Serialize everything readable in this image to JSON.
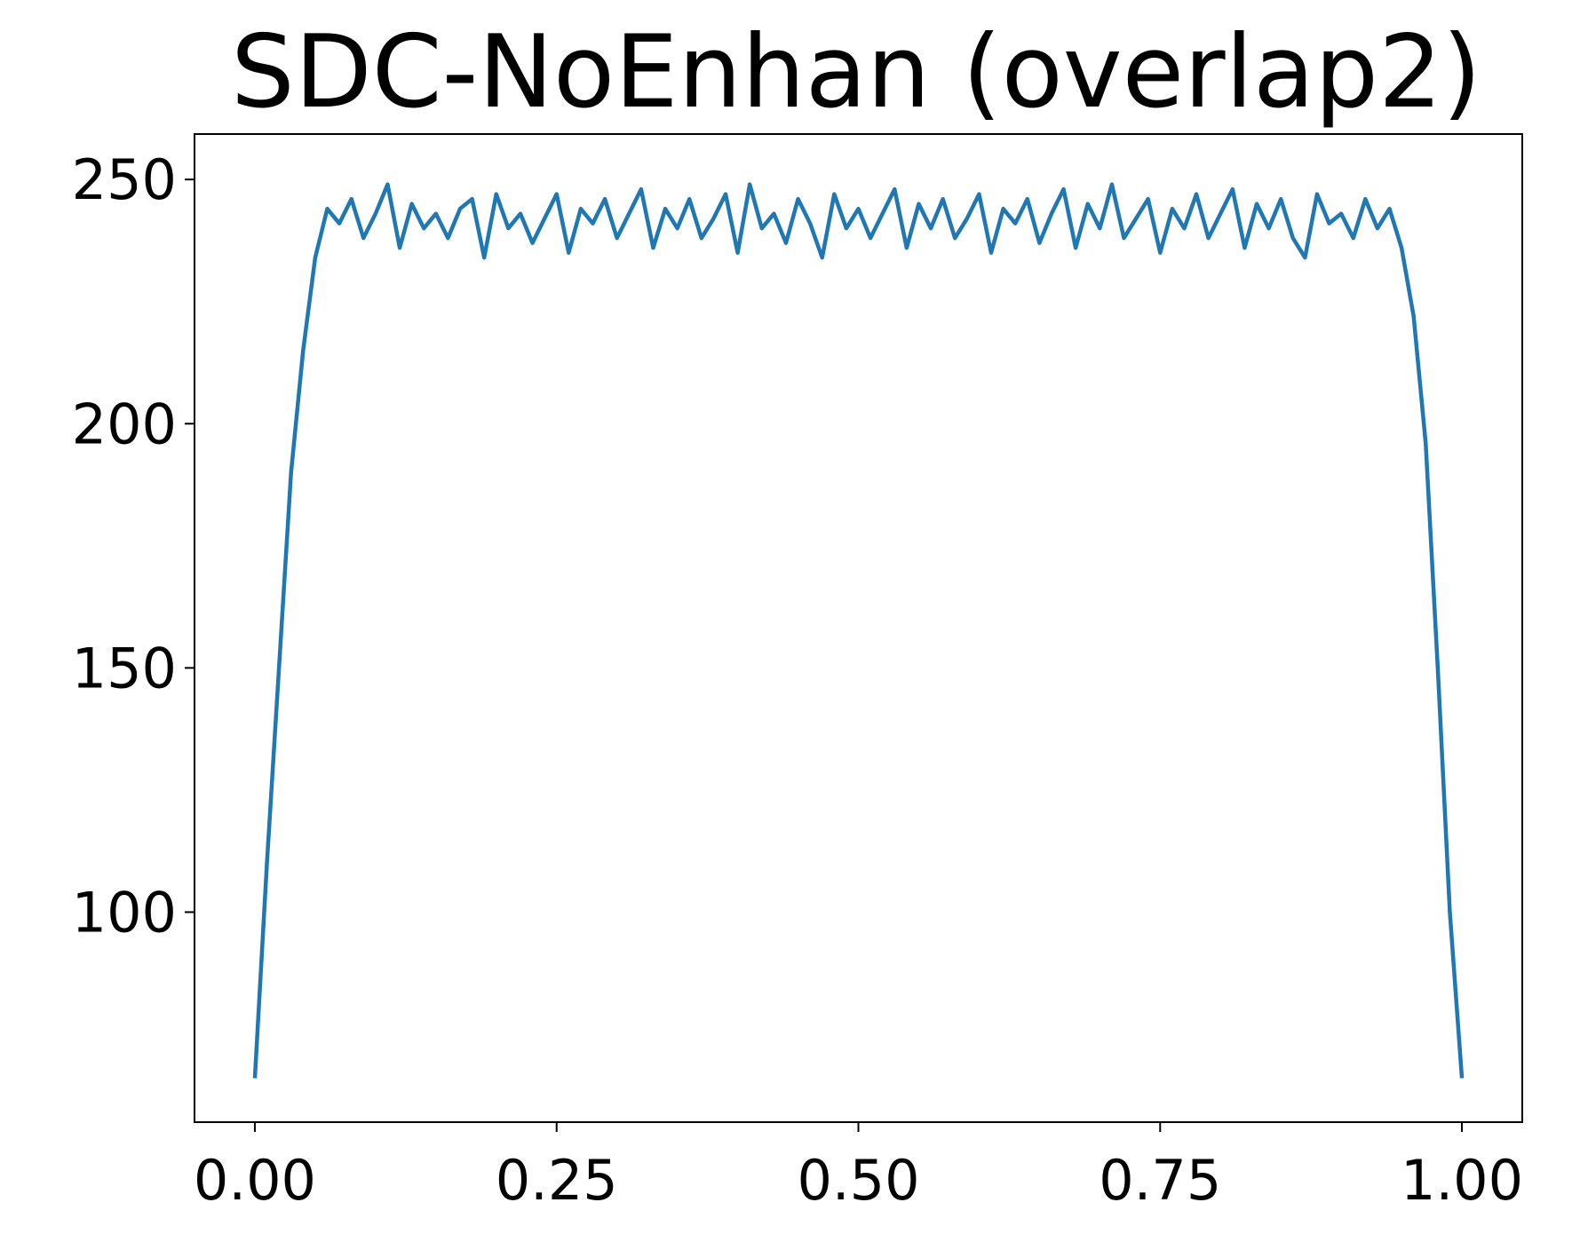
{
  "chart_data": {
    "type": "line",
    "title": "SDC-NoEnhan (overlap2)",
    "x": [
      0,
      0.01,
      0.02,
      0.03,
      0.04,
      0.05,
      0.06,
      0.07,
      0.08,
      0.09,
      0.1,
      0.11,
      0.12,
      0.13,
      0.14,
      0.15,
      0.16,
      0.17,
      0.18,
      0.19,
      0.2,
      0.21,
      0.22,
      0.23,
      0.24,
      0.25,
      0.26,
      0.27,
      0.28,
      0.29,
      0.3,
      0.31,
      0.32,
      0.33,
      0.34,
      0.35,
      0.36,
      0.37,
      0.38,
      0.39,
      0.4,
      0.41,
      0.42,
      0.43,
      0.44,
      0.45,
      0.46,
      0.47,
      0.48,
      0.49,
      0.5,
      0.51,
      0.52,
      0.53,
      0.54,
      0.55,
      0.56,
      0.57,
      0.58,
      0.59,
      0.6,
      0.61,
      0.62,
      0.63,
      0.64,
      0.65,
      0.66,
      0.67,
      0.68,
      0.69,
      0.7,
      0.71,
      0.72,
      0.73,
      0.74,
      0.75,
      0.76,
      0.77,
      0.78,
      0.79,
      0.8,
      0.81,
      0.82,
      0.83,
      0.84,
      0.85,
      0.86,
      0.87,
      0.88,
      0.89,
      0.9,
      0.91,
      0.92,
      0.93,
      0.94,
      0.95,
      0.96,
      0.97,
      0.98,
      0.99,
      1
    ],
    "series": [
      {
        "color": "#1f77b4",
        "values": [
          66,
          110,
          150,
          190,
          215,
          234,
          244,
          241,
          246,
          238,
          243,
          249,
          236,
          245,
          240,
          243,
          238,
          244,
          246,
          234,
          247,
          240,
          243,
          237,
          242,
          247,
          235,
          244,
          241,
          246,
          238,
          243,
          248,
          236,
          244,
          240,
          246,
          238,
          242,
          247,
          235,
          249,
          240,
          243,
          237,
          246,
          241,
          234,
          247,
          240,
          244,
          238,
          243,
          248,
          236,
          245,
          240,
          246,
          238,
          242,
          247,
          235,
          244,
          241,
          246,
          237,
          243,
          248,
          236,
          245,
          240,
          249,
          238,
          242,
          246,
          235,
          244,
          240,
          247,
          238,
          243,
          248,
          236,
          245,
          240,
          246,
          238,
          234,
          247,
          241,
          243,
          238,
          246,
          240,
          244,
          236,
          222,
          196,
          150,
          100,
          66
        ]
      }
    ],
    "xlim": [
      -0.05,
      1.05
    ],
    "ylim": [
      57,
      259.3
    ],
    "xticks": [
      {
        "value": 0,
        "label": "0.00"
      },
      {
        "value": 0.25,
        "label": "0.25"
      },
      {
        "value": 0.5,
        "label": "0.50"
      },
      {
        "value": 0.75,
        "label": "0.75"
      },
      {
        "value": 1,
        "label": "1.00"
      }
    ],
    "yticks": [
      100,
      150,
      200,
      250
    ]
  }
}
